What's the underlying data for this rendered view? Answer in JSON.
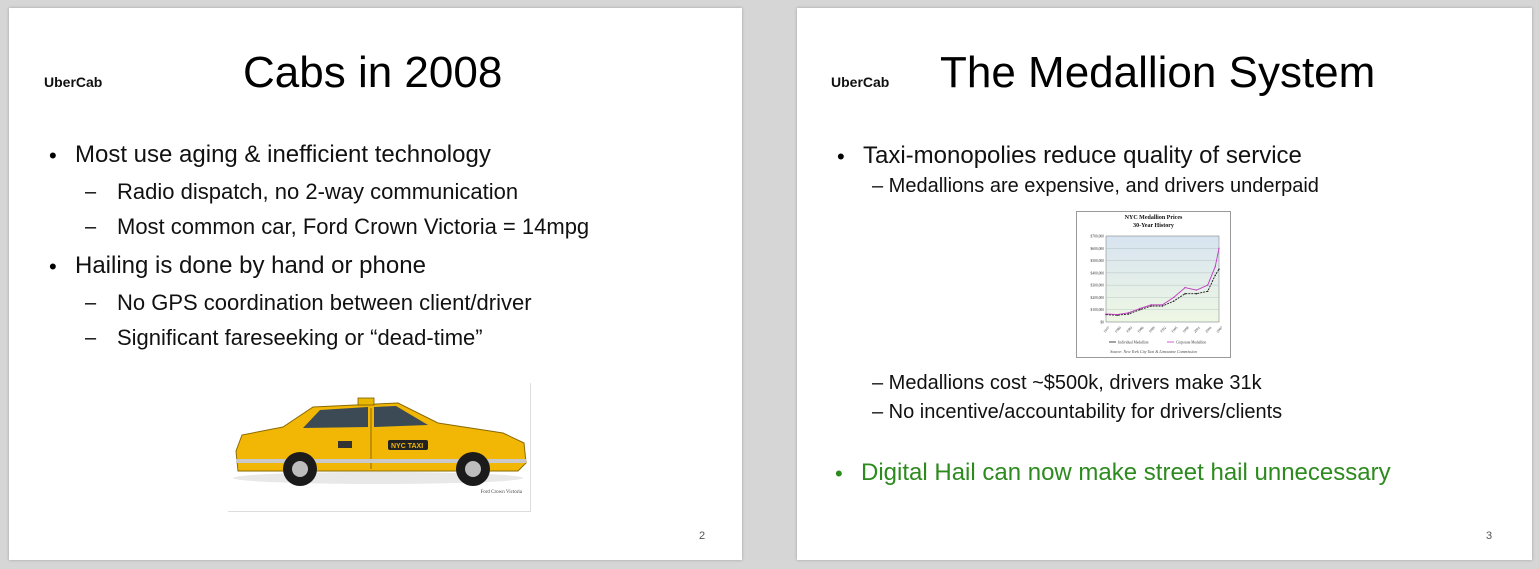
{
  "slides": [
    {
      "logo": "UberCab",
      "title": "Cabs in 2008",
      "bullets": [
        {
          "text": "Most use aging & inefficient technology",
          "subs": [
            "Radio dispatch, no 2-way communication",
            "Most common car, Ford Crown Victoria = 14mpg"
          ]
        },
        {
          "text": "Hailing is done by hand or phone",
          "subs": [
            "No GPS coordination between client/driver",
            "Significant fareseeking or “dead-time”"
          ]
        }
      ],
      "image_caption": "Ford Crown Victoria",
      "taxi_door_text": "NYC TAXI",
      "page_number": "2"
    },
    {
      "logo": "UberCab",
      "title": "The Medallion System",
      "bullet1": "Taxi-monopolies reduce quality of service",
      "sub1": "– Medallions are expensive, and drivers underpaid",
      "sub2": "– Medallions cost ~$500k, drivers make 31k",
      "sub3": "– No incentive/accountability for drivers/clients",
      "bullet2": "Digital Hail can now make street hail unnecessary",
      "page_number": "3",
      "colors": {
        "green_bullet": "#2d8a1e"
      }
    }
  ],
  "chart_data": {
    "type": "line",
    "title": "NYC Medallion Prices",
    "subtitle": "30-Year History",
    "source": "Source: New York City Taxi & Limousine Commission",
    "x": [
      1977,
      1980,
      1983,
      1986,
      1989,
      1992,
      1995,
      1998,
      2001,
      2004,
      2006,
      2007
    ],
    "y_ticks": [
      "$0",
      "$100,000",
      "$200,000",
      "$300,000",
      "$400,000",
      "$500,000",
      "$600,000",
      "$700,000"
    ],
    "x_ticks": [
      "1977",
      "1980",
      "1983",
      "1986",
      "1989",
      "1992",
      "1995",
      "1998",
      "2001",
      "2004",
      "2007"
    ],
    "ylim": [
      0,
      700000
    ],
    "grid": true,
    "legend_placement": "bottom",
    "series": [
      {
        "name": "Individual Medallion",
        "color": "#1a1a1a",
        "values": [
          60000,
          55000,
          65000,
          100000,
          130000,
          130000,
          170000,
          230000,
          230000,
          250000,
          380000,
          430000
        ]
      },
      {
        "name": "Corporate Medallion",
        "color": "#c03bc0",
        "values": [
          65000,
          60000,
          75000,
          110000,
          140000,
          140000,
          200000,
          280000,
          260000,
          300000,
          450000,
          600000
        ]
      }
    ]
  }
}
